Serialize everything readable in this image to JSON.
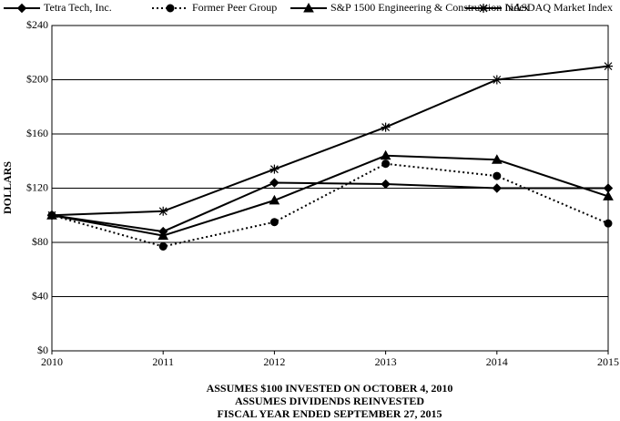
{
  "chart_data": {
    "type": "line",
    "x": [
      2010,
      2011,
      2012,
      2013,
      2014,
      2015
    ],
    "xlim": [
      2010,
      2015
    ],
    "xticks": [
      2010,
      2011,
      2012,
      2013,
      2014,
      2015
    ],
    "ylim": [
      0,
      240
    ],
    "yticks": [
      {
        "value": 0,
        "label": "$0"
      },
      {
        "value": 40,
        "label": "$40"
      },
      {
        "value": 80,
        "label": "$80"
      },
      {
        "value": 120,
        "label": "$120"
      },
      {
        "value": 160,
        "label": "$160"
      },
      {
        "value": 200,
        "label": "$200"
      },
      {
        "value": 240,
        "label": "$240"
      }
    ],
    "ylabel": "DOLLARS",
    "grid": true,
    "legend": "top",
    "series": [
      {
        "name": "Tetra Tech, Inc.",
        "color": "#000000",
        "marker": "diamond",
        "dash": "solid",
        "values": [
          100,
          88,
          124,
          123,
          120,
          120
        ]
      },
      {
        "name": "Former Peer Group",
        "color": "#000000",
        "marker": "circle",
        "dash": "dotted",
        "values": [
          100,
          77,
          95,
          138,
          129,
          94
        ]
      },
      {
        "name": "S&P 1500 Engineering & Construction Index",
        "color": "#000000",
        "marker": "triangle",
        "dash": "solid",
        "values": [
          100,
          85,
          111,
          144,
          141,
          114
        ]
      },
      {
        "name": "NASDAQ Market Index",
        "color": "#000000",
        "marker": "asterisk",
        "dash": "solid",
        "values": [
          100,
          103,
          134,
          165,
          200,
          210
        ]
      }
    ],
    "notes": [
      "ASSUMES $100 INVESTED ON OCTOBER 4, 2010",
      "ASSUMES DIVIDENDS REINVESTED",
      "FISCAL YEAR ENDED SEPTEMBER 27, 2015"
    ]
  }
}
